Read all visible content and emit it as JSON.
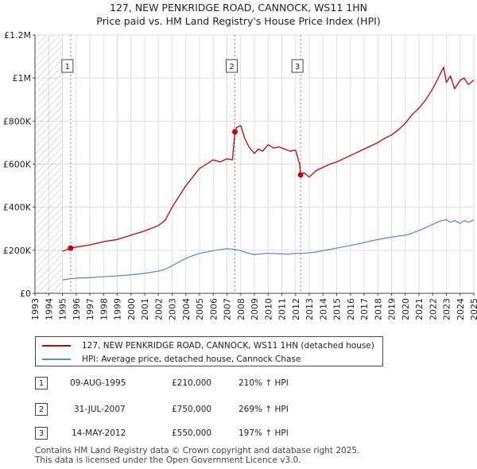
{
  "chart_data": {
    "type": "line",
    "title": "127, NEW PENKRIDGE ROAD, CANNOCK, WS11 1HN",
    "subtitle": "Price paid vs. HM Land Registry's House Price Index (HPI)",
    "xlabel": "",
    "ylabel": "",
    "xlim": [
      1993,
      2025
    ],
    "ylim": [
      0,
      1200000
    ],
    "x_ticks": [
      "1993",
      "1994",
      "1995",
      "1996",
      "1997",
      "1998",
      "1999",
      "2000",
      "2001",
      "2002",
      "2003",
      "2004",
      "2005",
      "2006",
      "2007",
      "2008",
      "2009",
      "2010",
      "2011",
      "2012",
      "2013",
      "2014",
      "2015",
      "2016",
      "2017",
      "2018",
      "2019",
      "2020",
      "2021",
      "2022",
      "2023",
      "2024",
      "2025"
    ],
    "y_ticks": [
      {
        "value": 0,
        "label": "£0"
      },
      {
        "value": 200000,
        "label": "£200K"
      },
      {
        "value": 400000,
        "label": "£400K"
      },
      {
        "value": 600000,
        "label": "£600K"
      },
      {
        "value": 800000,
        "label": "£800K"
      },
      {
        "value": 1000000,
        "label": "£1M"
      },
      {
        "value": 1200000,
        "label": "£1.2M"
      }
    ],
    "hatched_before": 1995.0,
    "grid": true,
    "series": [
      {
        "name": "127, NEW PENKRIDGE ROAD, CANNOCK, WS11 1HN (detached house)",
        "color": "#cc0000",
        "x": [
          1995.0,
          1995.6,
          1996.0,
          1997.0,
          1998.0,
          1999.0,
          2000.0,
          2001.0,
          2002.0,
          2002.5,
          2003.0,
          2003.5,
          2004.0,
          2004.5,
          2005.0,
          2005.5,
          2006.0,
          2006.5,
          2007.0,
          2007.4,
          2007.58,
          2007.7,
          2008.0,
          2008.3,
          2008.6,
          2009.0,
          2009.3,
          2009.6,
          2010.0,
          2010.4,
          2010.8,
          2011.2,
          2011.6,
          2012.0,
          2012.3,
          2012.37,
          2012.6,
          2013.0,
          2013.5,
          2014.0,
          2014.5,
          2015.0,
          2015.5,
          2016.0,
          2016.5,
          2017.0,
          2017.5,
          2018.0,
          2018.5,
          2019.0,
          2019.5,
          2020.0,
          2020.5,
          2021.0,
          2021.5,
          2022.0,
          2022.4,
          2022.8,
          2023.0,
          2023.3,
          2023.6,
          2024.0,
          2024.3,
          2024.6,
          2025.0
        ],
        "values": [
          195000,
          210000,
          215000,
          225000,
          240000,
          250000,
          270000,
          290000,
          315000,
          340000,
          400000,
          450000,
          500000,
          540000,
          580000,
          600000,
          620000,
          610000,
          625000,
          620000,
          750000,
          770000,
          780000,
          720000,
          680000,
          650000,
          670000,
          660000,
          690000,
          675000,
          680000,
          670000,
          660000,
          665000,
          600000,
          550000,
          560000,
          540000,
          570000,
          585000,
          600000,
          610000,
          625000,
          640000,
          655000,
          670000,
          685000,
          700000,
          720000,
          735000,
          760000,
          790000,
          830000,
          860000,
          900000,
          950000,
          1000000,
          1050000,
          980000,
          1010000,
          950000,
          990000,
          1000000,
          970000,
          990000
        ]
      },
      {
        "name": "HPI: Average price, detached house, Cannock Chase",
        "color": "#5a8fcf",
        "x": [
          1995.0,
          1995.6,
          1996.0,
          1997.0,
          1998.0,
          1999.0,
          2000.0,
          2001.0,
          2002.0,
          2002.5,
          2003.0,
          2003.5,
          2004.0,
          2004.5,
          2005.0,
          2005.5,
          2006.0,
          2006.5,
          2007.0,
          2007.5,
          2008.0,
          2008.5,
          2009.0,
          2009.5,
          2010.0,
          2010.5,
          2011.0,
          2011.5,
          2012.0,
          2012.5,
          2013.0,
          2013.5,
          2014.0,
          2014.5,
          2015.0,
          2015.5,
          2016.0,
          2016.5,
          2017.0,
          2017.5,
          2018.0,
          2018.5,
          2019.0,
          2019.5,
          2020.0,
          2020.5,
          2021.0,
          2021.5,
          2022.0,
          2022.5,
          2023.0,
          2023.3,
          2023.6,
          2024.0,
          2024.3,
          2024.6,
          2025.0
        ],
        "values": [
          62000,
          68000,
          70000,
          73000,
          77000,
          81000,
          86000,
          93000,
          103000,
          112000,
          128000,
          145000,
          162000,
          175000,
          185000,
          192000,
          198000,
          203000,
          207000,
          205000,
          198000,
          187000,
          180000,
          183000,
          186000,
          184000,
          183000,
          182000,
          185000,
          186000,
          188000,
          192000,
          198000,
          204000,
          210000,
          216000,
          222000,
          229000,
          236000,
          243000,
          250000,
          256000,
          261000,
          266000,
          270000,
          280000,
          292000,
          305000,
          320000,
          335000,
          342000,
          330000,
          338000,
          325000,
          338000,
          330000,
          340000
        ]
      }
    ],
    "sales": [
      {
        "id": "1",
        "x": 1995.6,
        "value": 210000
      },
      {
        "id": "2",
        "x": 2007.58,
        "value": 750000
      },
      {
        "id": "3",
        "x": 2012.37,
        "value": 550000
      }
    ]
  },
  "legend": {
    "property_label": "127, NEW PENKRIDGE ROAD, CANNOCK, WS11 1HN (detached house)",
    "property_color": "#cc0000",
    "hpi_label": "HPI: Average price, detached house, Cannock Chase",
    "hpi_color": "#5a8fcf"
  },
  "transactions": [
    {
      "id": "1",
      "date": "09-AUG-1995",
      "price": "£210,000",
      "change": "210% ↑ HPI"
    },
    {
      "id": "2",
      "date": "31-JUL-2007",
      "price": "£750,000",
      "change": "269% ↑ HPI"
    },
    {
      "id": "3",
      "date": "14-MAY-2012",
      "price": "£550,000",
      "change": "197% ↑ HPI"
    }
  ],
  "footer": {
    "line1": "Contains HM Land Registry data © Crown copyright and database right 2025.",
    "line2": "This data is licensed under the Open Government Licence v3.0."
  }
}
